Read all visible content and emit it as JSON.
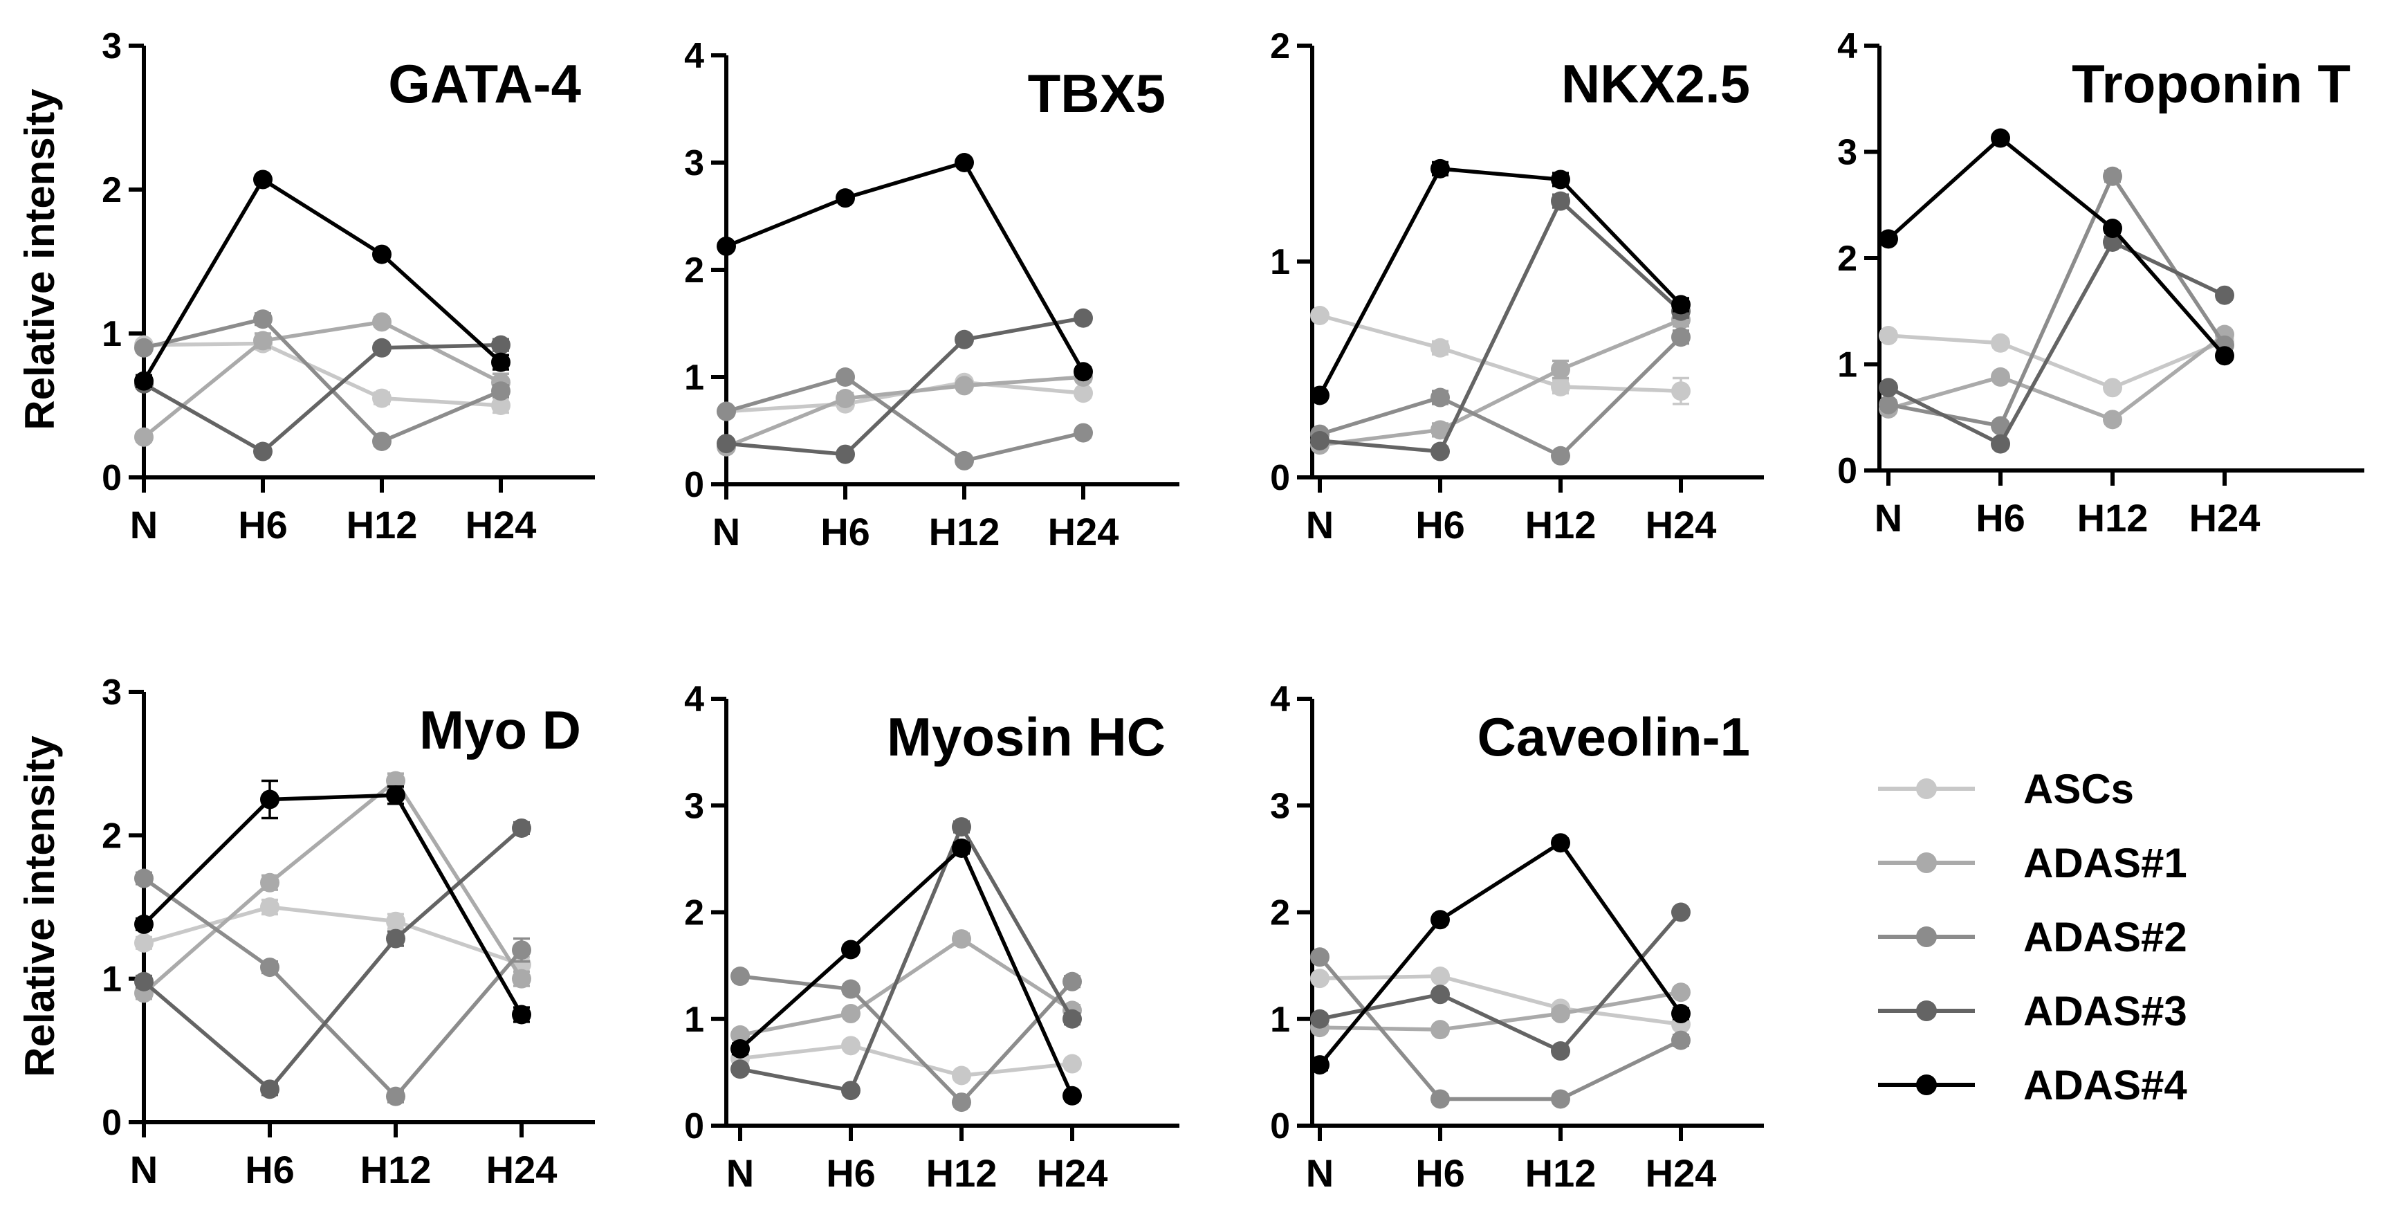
{
  "figure": {
    "ylabel": "Relative intensity",
    "categories": [
      "N",
      "H6",
      "H12",
      "H24"
    ],
    "series_style": [
      {
        "name": "ASCs",
        "color": "#c8c8c8"
      },
      {
        "name": "ADAS#1",
        "color": "#aaaaaa"
      },
      {
        "name": "ADAS#2",
        "color": "#8c8c8c"
      },
      {
        "name": "ADAS#3",
        "color": "#646464"
      },
      {
        "name": "ADAS#4",
        "color": "#000000"
      }
    ]
  },
  "legend": {
    "items": [
      {
        "label": "ASCs",
        "color": "#c8c8c8"
      },
      {
        "label": "ADAS#1",
        "color": "#aaaaaa"
      },
      {
        "label": "ADAS#2",
        "color": "#8c8c8c"
      },
      {
        "label": "ADAS#3",
        "color": "#646464"
      },
      {
        "label": "ADAS#4",
        "color": "#000000"
      }
    ]
  },
  "chart_data": [
    {
      "type": "line",
      "title": "GATA-4",
      "xlabel": "",
      "ylabel": "Relative intensity",
      "categories": [
        "N",
        "H6",
        "H12",
        "H24"
      ],
      "ylim": [
        0,
        3
      ],
      "yticks": [
        0,
        1,
        2,
        3
      ],
      "series": [
        {
          "name": "ASCs",
          "values": [
            0.92,
            0.93,
            0.55,
            0.5
          ],
          "errors": [
            0.03,
            0.04,
            0.04,
            0.05
          ]
        },
        {
          "name": "ADAS#1",
          "values": [
            0.28,
            0.95,
            1.08,
            0.66
          ],
          "errors": [
            0.03,
            0.05,
            0.03,
            0.06
          ]
        },
        {
          "name": "ADAS#2",
          "values": [
            0.9,
            1.1,
            0.25,
            0.6
          ],
          "errors": [
            0.03,
            0.04,
            0.03,
            0.04
          ]
        },
        {
          "name": "ADAS#3",
          "values": [
            0.65,
            0.18,
            0.9,
            0.92
          ],
          "errors": [
            0.03,
            0.03,
            0.03,
            0.04
          ]
        },
        {
          "name": "ADAS#4",
          "values": [
            0.67,
            2.07,
            1.55,
            0.8
          ],
          "errors": [
            0.04,
            0.03,
            0.03,
            0.05
          ]
        }
      ]
    },
    {
      "type": "line",
      "title": "TBX5",
      "xlabel": "",
      "ylabel": "",
      "categories": [
        "N",
        "H6",
        "H12",
        "H24"
      ],
      "ylim": [
        0,
        4
      ],
      "yticks": [
        0,
        1,
        2,
        3,
        4
      ],
      "series": [
        {
          "name": "ASCs",
          "values": [
            0.68,
            0.75,
            0.95,
            0.85
          ],
          "errors": [
            0.03,
            0.04,
            0.03,
            0.04
          ]
        },
        {
          "name": "ADAS#1",
          "values": [
            0.35,
            0.8,
            0.92,
            1.0
          ],
          "errors": [
            0.03,
            0.05,
            0.04,
            0.04
          ]
        },
        {
          "name": "ADAS#2",
          "values": [
            0.68,
            1.0,
            0.22,
            0.48
          ],
          "errors": [
            0.03,
            0.03,
            0.03,
            0.04
          ]
        },
        {
          "name": "ADAS#3",
          "values": [
            0.38,
            0.28,
            1.35,
            1.55
          ],
          "errors": [
            0.03,
            0.03,
            0.03,
            0.03
          ]
        },
        {
          "name": "ADAS#4",
          "values": [
            2.22,
            2.67,
            3.0,
            1.05
          ],
          "errors": [
            0.03,
            0.03,
            0.03,
            0.04
          ]
        }
      ]
    },
    {
      "type": "line",
      "title": "NKX2.5",
      "xlabel": "",
      "ylabel": "",
      "categories": [
        "N",
        "H6",
        "H12",
        "H24"
      ],
      "ylim": [
        0,
        2
      ],
      "yticks": [
        0,
        1,
        2
      ],
      "series": [
        {
          "name": "ASCs",
          "values": [
            0.75,
            0.6,
            0.42,
            0.4
          ],
          "errors": [
            0.02,
            0.03,
            0.03,
            0.06
          ]
        },
        {
          "name": "ADAS#1",
          "values": [
            0.15,
            0.22,
            0.5,
            0.73
          ],
          "errors": [
            0.02,
            0.03,
            0.04,
            0.03
          ]
        },
        {
          "name": "ADAS#2",
          "values": [
            0.2,
            0.37,
            0.1,
            0.65
          ],
          "errors": [
            0.02,
            0.03,
            0.02,
            0.03
          ]
        },
        {
          "name": "ADAS#3",
          "values": [
            0.17,
            0.12,
            1.28,
            0.77
          ],
          "errors": [
            0.02,
            0.02,
            0.03,
            0.03
          ]
        },
        {
          "name": "ADAS#4",
          "values": [
            0.38,
            1.43,
            1.38,
            0.8
          ],
          "errors": [
            0.02,
            0.03,
            0.03,
            0.03
          ]
        }
      ]
    },
    {
      "type": "line",
      "title": "Troponin T",
      "xlabel": "",
      "ylabel": "",
      "categories": [
        "N",
        "H6",
        "H12",
        "H24"
      ],
      "ylim": [
        0,
        4
      ],
      "yticks": [
        0,
        1,
        2,
        3,
        4
      ],
      "series": [
        {
          "name": "ASCs",
          "values": [
            1.27,
            1.2,
            0.78,
            1.22
          ],
          "errors": [
            0.04,
            0.04,
            0.03,
            0.04
          ]
        },
        {
          "name": "ADAS#1",
          "values": [
            0.58,
            0.88,
            0.48,
            1.28
          ],
          "errors": [
            0.04,
            0.04,
            0.04,
            0.04
          ]
        },
        {
          "name": "ADAS#2",
          "values": [
            0.62,
            0.42,
            2.77,
            1.18
          ],
          "errors": [
            0.04,
            0.04,
            0.05,
            0.04
          ]
        },
        {
          "name": "ADAS#3",
          "values": [
            0.78,
            0.25,
            2.15,
            1.65
          ],
          "errors": [
            0.04,
            0.04,
            0.05,
            0.04
          ]
        },
        {
          "name": "ADAS#4",
          "values": [
            2.18,
            3.13,
            2.28,
            1.08
          ],
          "errors": [
            0.04,
            0.03,
            0.04,
            0.04
          ]
        }
      ]
    },
    {
      "type": "line",
      "title": "Myo D",
      "xlabel": "",
      "ylabel": "Relative intensity",
      "categories": [
        "N",
        "H6",
        "H12",
        "H24"
      ],
      "ylim": [
        0,
        3
      ],
      "yticks": [
        0,
        1,
        2,
        3
      ],
      "series": [
        {
          "name": "ASCs",
          "values": [
            1.25,
            1.5,
            1.4,
            1.1
          ],
          "errors": [
            0.04,
            0.05,
            0.05,
            0.05
          ]
        },
        {
          "name": "ADAS#1",
          "values": [
            0.9,
            1.67,
            2.38,
            1.0
          ],
          "errors": [
            0.04,
            0.05,
            0.05,
            0.05
          ]
        },
        {
          "name": "ADAS#2",
          "values": [
            1.7,
            1.08,
            0.18,
            1.2
          ],
          "errors": [
            0.04,
            0.04,
            0.04,
            0.08
          ]
        },
        {
          "name": "ADAS#3",
          "values": [
            0.98,
            0.23,
            1.28,
            2.05
          ],
          "errors": [
            0.04,
            0.04,
            0.05,
            0.04
          ]
        },
        {
          "name": "ADAS#4",
          "values": [
            1.38,
            2.25,
            2.28,
            0.75
          ],
          "errors": [
            0.04,
            0.13,
            0.06,
            0.05
          ]
        }
      ]
    },
    {
      "type": "line",
      "title": "Myosin HC",
      "xlabel": "",
      "ylabel": "",
      "categories": [
        "N",
        "H6",
        "H12",
        "H24"
      ],
      "ylim": [
        0,
        4
      ],
      "yticks": [
        0,
        1,
        2,
        3,
        4
      ],
      "series": [
        {
          "name": "ASCs",
          "values": [
            0.63,
            0.75,
            0.47,
            0.58
          ],
          "errors": [
            0.04,
            0.04,
            0.04,
            0.04
          ]
        },
        {
          "name": "ADAS#1",
          "values": [
            0.85,
            1.05,
            1.75,
            1.08
          ],
          "errors": [
            0.04,
            0.04,
            0.05,
            0.05
          ]
        },
        {
          "name": "ADAS#2",
          "values": [
            1.4,
            1.28,
            0.22,
            1.35
          ],
          "errors": [
            0.04,
            0.04,
            0.04,
            0.05
          ]
        },
        {
          "name": "ADAS#3",
          "values": [
            0.53,
            0.33,
            2.8,
            1.0
          ],
          "errors": [
            0.04,
            0.04,
            0.05,
            0.05
          ]
        },
        {
          "name": "ADAS#4",
          "values": [
            0.72,
            1.65,
            2.6,
            0.28
          ],
          "errors": [
            0.05,
            0.04,
            0.05,
            0.04
          ]
        }
      ]
    },
    {
      "type": "line",
      "title": "Caveolin-1",
      "xlabel": "",
      "ylabel": "",
      "categories": [
        "N",
        "H6",
        "H12",
        "H24"
      ],
      "ylim": [
        0,
        4
      ],
      "yticks": [
        0,
        1,
        2,
        3,
        4
      ],
      "series": [
        {
          "name": "ASCs",
          "values": [
            1.38,
            1.4,
            1.1,
            0.95
          ],
          "errors": [
            0.04,
            0.04,
            0.04,
            0.04
          ]
        },
        {
          "name": "ADAS#1",
          "values": [
            0.92,
            0.9,
            1.05,
            1.25
          ],
          "errors": [
            0.04,
            0.04,
            0.04,
            0.04
          ]
        },
        {
          "name": "ADAS#2",
          "values": [
            1.58,
            0.25,
            0.25,
            0.8
          ],
          "errors": [
            0.04,
            0.04,
            0.04,
            0.05
          ]
        },
        {
          "name": "ADAS#3",
          "values": [
            1.0,
            1.23,
            0.7,
            2.0
          ],
          "errors": [
            0.04,
            0.04,
            0.04,
            0.03
          ]
        },
        {
          "name": "ADAS#4",
          "values": [
            0.57,
            1.93,
            2.65,
            1.05
          ],
          "errors": [
            0.05,
            0.04,
            0.04,
            0.05
          ]
        }
      ]
    }
  ]
}
